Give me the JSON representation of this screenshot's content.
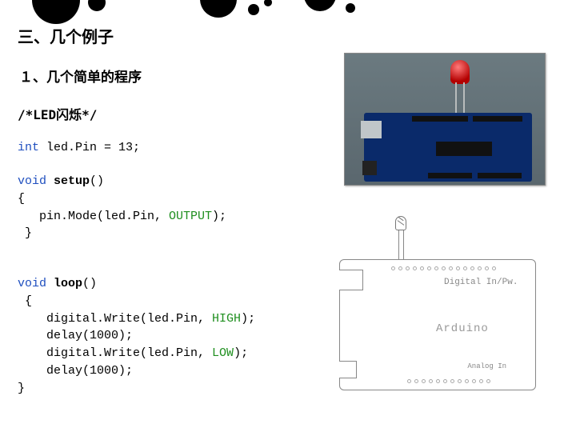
{
  "heading1": "三、几个例子",
  "heading2": "１、几个简单的程序",
  "comment": "/*LED闪烁*/",
  "code": {
    "decl_type": "int",
    "decl_rest": " led.Pin = 13;",
    "void": "void",
    "setup_name": "setup",
    "empty_parens": "()",
    "brace_open": "{",
    "brace_close": "}",
    "setup_body_pre": "   pin.Mode(led.Pin, ",
    "output_kw": "OUTPUT",
    "close_stmt": ");",
    "loop_name": "loop",
    "dw_pre": "    digital.Write(led.Pin, ",
    "high": "HIGH",
    "low": "LOW",
    "delay_pre": "    delay(",
    "delay_val": "1000",
    "brace_open_indent": " {"
  },
  "schematic": {
    "digital": "Digital In/Pw.",
    "arduino": "Arduino",
    "analog": "Analog In"
  },
  "colors": {
    "keyword_type": "#1f4fbf",
    "keyword_const": "#1f8f1f",
    "board_blue": "#0a2a6a",
    "led_red": "#b30000"
  }
}
